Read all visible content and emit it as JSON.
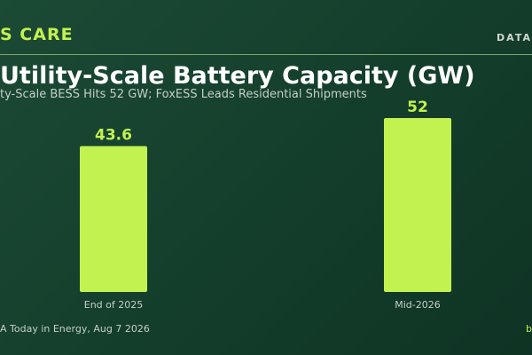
{
  "header": {
    "brand": "S CARE",
    "tag": "DATA",
    "title": "Utility-Scale Battery Capacity (GW)",
    "subtitle": "ty-Scale BESS Hits 52 GW; FoxESS Leads Residential Shipments"
  },
  "footer": {
    "source": "A Today in Energy, Aug 7 2026",
    "link": "b"
  },
  "colors": {
    "accent": "#c2f24f",
    "background": "#15402d"
  },
  "chart_data": {
    "type": "bar",
    "categories": [
      "End of 2025",
      "Mid-2026"
    ],
    "values": [
      43.6,
      52
    ],
    "title": "Utility-Scale Battery Capacity (GW)",
    "ylim": [
      0,
      52
    ],
    "grid": false,
    "legend": "none"
  }
}
